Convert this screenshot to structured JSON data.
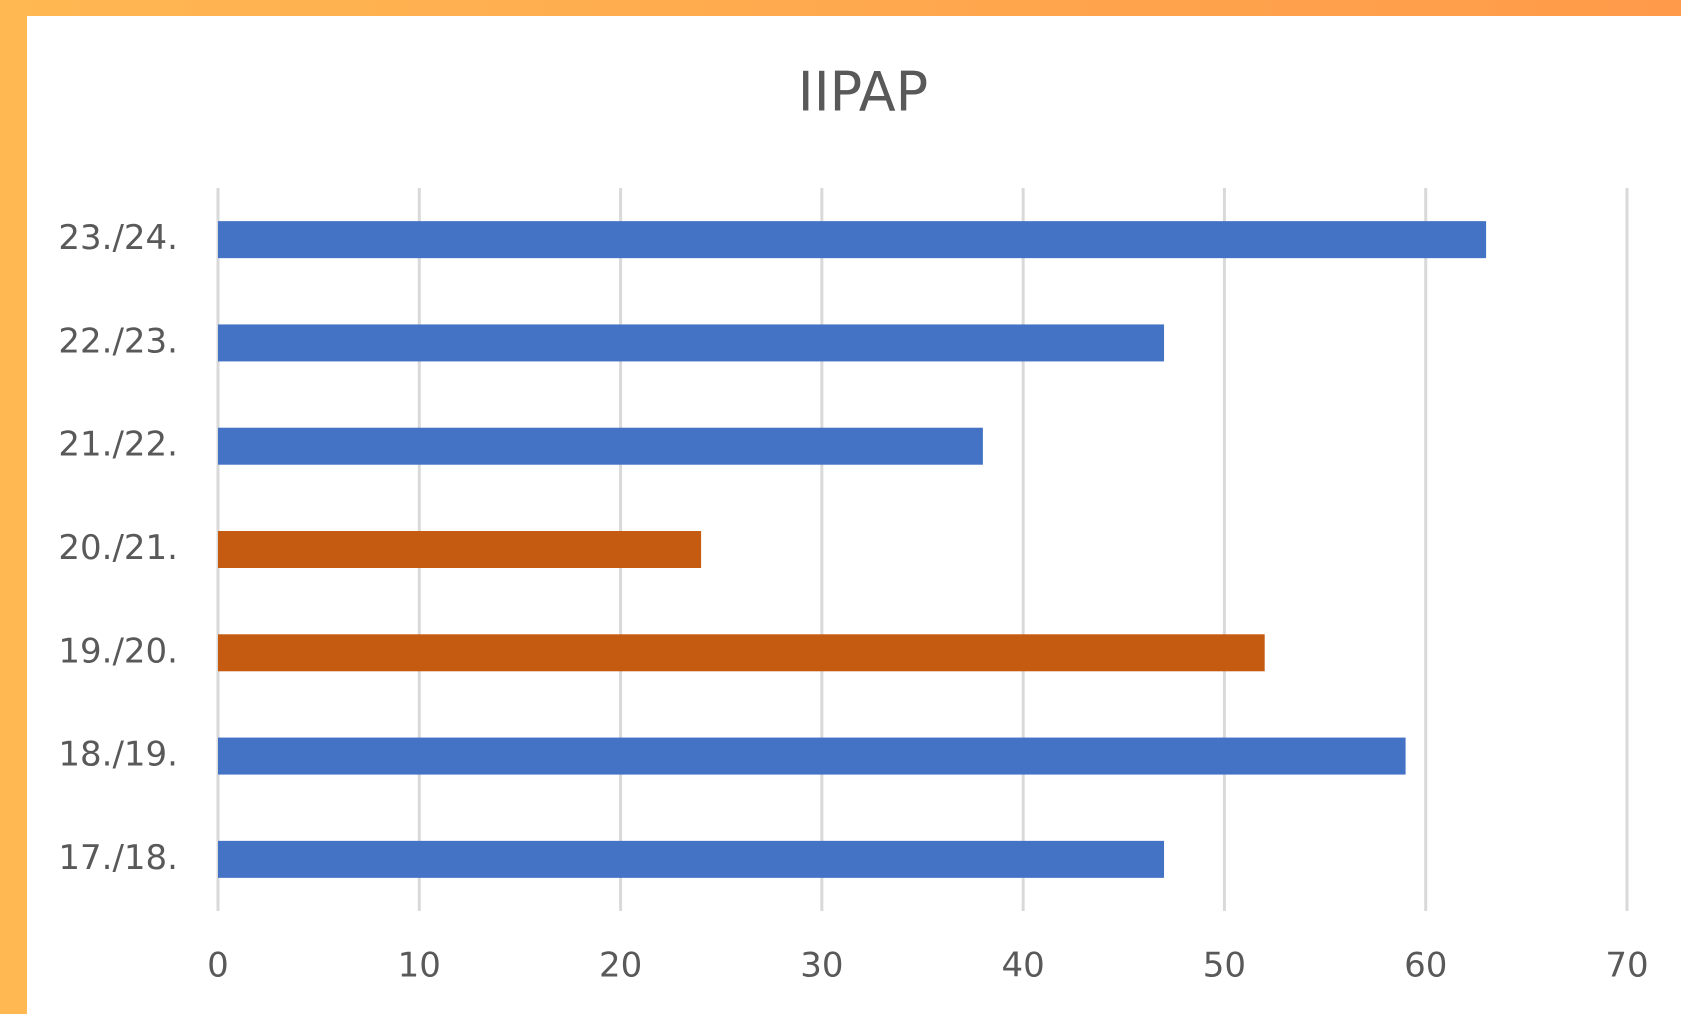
{
  "chart_data": {
    "type": "barh",
    "title": "IIPAP",
    "categories": [
      "17./18.",
      "18./19.",
      "19./20.",
      "20./21.",
      "21./22.",
      "22./23.",
      "23./24."
    ],
    "values": [
      47,
      59,
      52,
      24,
      38,
      47,
      63
    ],
    "colors": [
      "#4472c4",
      "#4472c4",
      "#c55a11",
      "#c55a11",
      "#4472c4",
      "#4472c4",
      "#4472c4"
    ],
    "xlim": [
      0,
      70
    ],
    "xticks": [
      0,
      10,
      20,
      30,
      40,
      50,
      60,
      70
    ],
    "grid": true
  }
}
